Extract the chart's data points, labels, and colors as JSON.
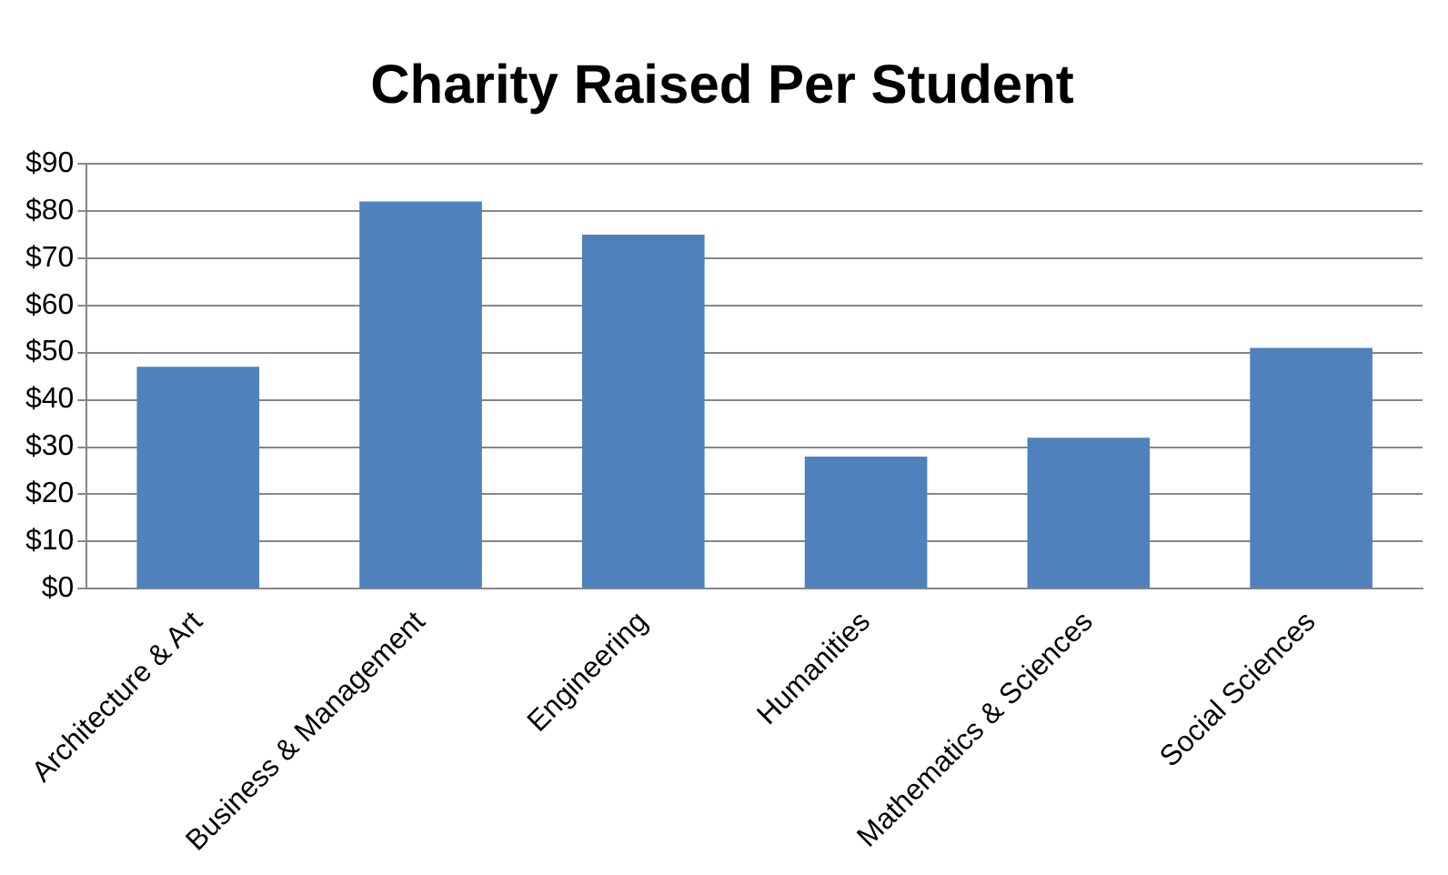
{
  "chart_data": {
    "type": "bar",
    "title": "Charity Raised Per Student",
    "categories": [
      "Architecture & Art",
      "Business & Management",
      "Engineering",
      "Humanities",
      "Mathematics & Sciences",
      "Social Sciences"
    ],
    "values": [
      47,
      82,
      75,
      28,
      32,
      51
    ],
    "color": "#4f81bd",
    "ylim": [
      0,
      90
    ],
    "yticks": [
      {
        "value": 0,
        "label": "$0"
      },
      {
        "value": 10,
        "label": "$10"
      },
      {
        "value": 20,
        "label": "$20"
      },
      {
        "value": 30,
        "label": "$30"
      },
      {
        "value": 40,
        "label": "$40"
      },
      {
        "value": 50,
        "label": "$50"
      },
      {
        "value": 60,
        "label": "$60"
      },
      {
        "value": 70,
        "label": "$70"
      },
      {
        "value": 80,
        "label": "$80"
      },
      {
        "value": 90,
        "label": "$90"
      }
    ],
    "grid": "y",
    "legend": false
  }
}
